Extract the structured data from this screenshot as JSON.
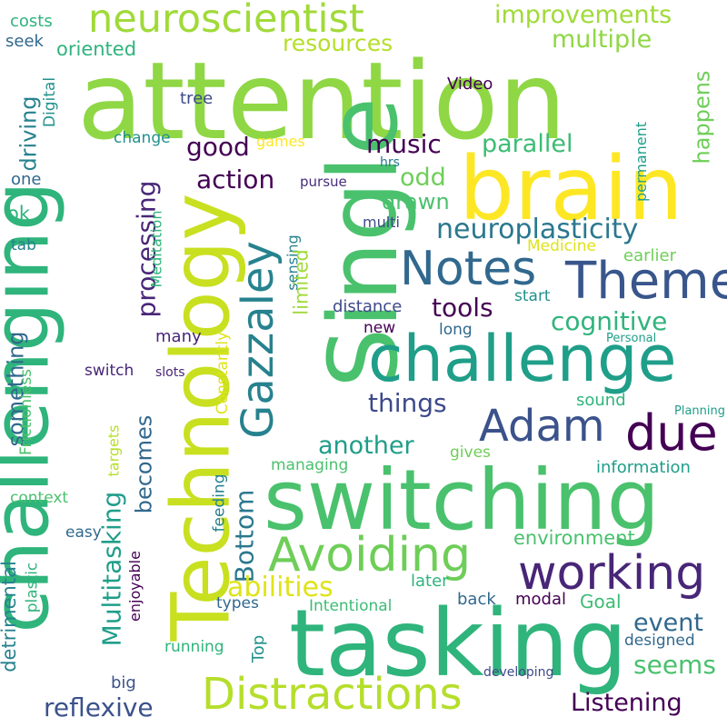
{
  "words": [
    {
      "text": "attention",
      "color": "#8fd744"
    },
    {
      "text": "brain",
      "color": "#fde725"
    },
    {
      "text": "Single",
      "color": "#4ac16d"
    },
    {
      "text": "Technology",
      "color": "#c8e020"
    },
    {
      "text": "challenging",
      "color": "#2fb47c"
    },
    {
      "text": "switching",
      "color": "#4ac16d"
    },
    {
      "text": "tasking",
      "color": "#2fb47c"
    },
    {
      "text": "challenge",
      "color": "#1f9e89"
    },
    {
      "text": "neuroscientist",
      "color": "#a0da39"
    },
    {
      "text": "Notes",
      "color": "#31688e"
    },
    {
      "text": "Theme",
      "color": "#39568c"
    },
    {
      "text": "Gazzaley",
      "color": "#26828e"
    },
    {
      "text": "Adam",
      "color": "#3b528b"
    },
    {
      "text": "due",
      "color": "#440154"
    },
    {
      "text": "Avoiding",
      "color": "#6ece58"
    },
    {
      "text": "working",
      "color": "#482677"
    },
    {
      "text": "Distractions",
      "color": "#b5de2b"
    },
    {
      "text": "improvements",
      "color": "#a0da39"
    },
    {
      "text": "multiple",
      "color": "#8fd744"
    },
    {
      "text": "resources",
      "color": "#b5de2b"
    },
    {
      "text": "parallel",
      "color": "#3dbc74"
    },
    {
      "text": "music",
      "color": "#440154"
    },
    {
      "text": "action",
      "color": "#440154"
    },
    {
      "text": "good",
      "color": "#440154"
    },
    {
      "text": "odd",
      "color": "#6ece58"
    },
    {
      "text": "drawn",
      "color": "#4ac16d"
    },
    {
      "text": "neuroplasticity",
      "color": "#2a788e"
    },
    {
      "text": "processing",
      "color": "#482677"
    },
    {
      "text": "tools",
      "color": "#440154"
    },
    {
      "text": "cognitive",
      "color": "#2fb47c"
    },
    {
      "text": "things",
      "color": "#3e4989"
    },
    {
      "text": "another",
      "color": "#1f9e89"
    },
    {
      "text": "becomes",
      "color": "#31688e"
    },
    {
      "text": "Bottom",
      "color": "#2a788e"
    },
    {
      "text": "abilities",
      "color": "#dfe318"
    },
    {
      "text": "Multitasking",
      "color": "#1f9e89"
    },
    {
      "text": "something",
      "color": "#31688e"
    },
    {
      "text": "reflexive",
      "color": "#3b528b"
    },
    {
      "text": "Listening",
      "color": "#440154"
    },
    {
      "text": "event",
      "color": "#31688e"
    },
    {
      "text": "seems",
      "color": "#4ac16d"
    },
    {
      "text": "environment",
      "color": "#4ac16d"
    },
    {
      "text": "happens",
      "color": "#6ece58"
    },
    {
      "text": "Video",
      "color": "#440154"
    },
    {
      "text": "Digital",
      "color": "#21918c"
    },
    {
      "text": "driving",
      "color": "#26828e"
    },
    {
      "text": "oriented",
      "color": "#2fb47c"
    },
    {
      "text": "seek",
      "color": "#31688e"
    },
    {
      "text": "costs",
      "color": "#2fb47c"
    },
    {
      "text": "tree",
      "color": "#3e4989"
    },
    {
      "text": "change",
      "color": "#21918c"
    },
    {
      "text": "games",
      "color": "#fde725"
    },
    {
      "text": "one",
      "color": "#31688e"
    },
    {
      "text": "ok",
      "color": "#2fb47c"
    },
    {
      "text": "pursue",
      "color": "#472d7b"
    },
    {
      "text": "hrs",
      "color": "#2a788e"
    },
    {
      "text": "multi",
      "color": "#3e4989"
    },
    {
      "text": "permanent",
      "color": "#1f9e89"
    },
    {
      "text": "Medicine",
      "color": "#dfe318"
    },
    {
      "text": "earlier",
      "color": "#6ece58"
    },
    {
      "text": "tab",
      "color": "#26828e"
    },
    {
      "text": "Meditation",
      "color": "#2fb47c"
    },
    {
      "text": "sensing",
      "color": "#26828e"
    },
    {
      "text": "limited",
      "color": "#a0da39"
    },
    {
      "text": "start",
      "color": "#21918c"
    },
    {
      "text": "distance",
      "color": "#3e4989"
    },
    {
      "text": "new",
      "color": "#440154"
    },
    {
      "text": "long",
      "color": "#31688e"
    },
    {
      "text": "Personal",
      "color": "#1f9e89"
    },
    {
      "text": "many",
      "color": "#482677"
    },
    {
      "text": "Constantly",
      "color": "#dfe318"
    },
    {
      "text": "slots",
      "color": "#482677"
    },
    {
      "text": "switch",
      "color": "#482677"
    },
    {
      "text": "Frictionless",
      "color": "#4ac16d"
    },
    {
      "text": "targets",
      "color": "#b5de2b"
    },
    {
      "text": "sound",
      "color": "#2fb47c"
    },
    {
      "text": "Planning",
      "color": "#1f9e89"
    },
    {
      "text": "context",
      "color": "#4ac16d"
    },
    {
      "text": "gives",
      "color": "#6ece58"
    },
    {
      "text": "managing",
      "color": "#4ac16d"
    },
    {
      "text": "information",
      "color": "#1f9e89"
    },
    {
      "text": "easy",
      "color": "#31688e"
    },
    {
      "text": "detrimental",
      "color": "#26828e"
    },
    {
      "text": "plastic",
      "color": "#2fb47c"
    },
    {
      "text": "enjoyable",
      "color": "#440154"
    },
    {
      "text": "feeding",
      "color": "#26828e"
    },
    {
      "text": "types",
      "color": "#31688e"
    },
    {
      "text": "Intentional",
      "color": "#3dbc74"
    },
    {
      "text": "Goal",
      "color": "#3dbc74"
    },
    {
      "text": "later",
      "color": "#2fb47c"
    },
    {
      "text": "back",
      "color": "#31688e"
    },
    {
      "text": "modal",
      "color": "#440154"
    },
    {
      "text": "running",
      "color": "#2fb47c"
    },
    {
      "text": "Top",
      "color": "#21918c"
    },
    {
      "text": "designed",
      "color": "#31688e"
    },
    {
      "text": "big",
      "color": "#3b528b"
    },
    {
      "text": "developing",
      "color": "#3e4989"
    }
  ]
}
